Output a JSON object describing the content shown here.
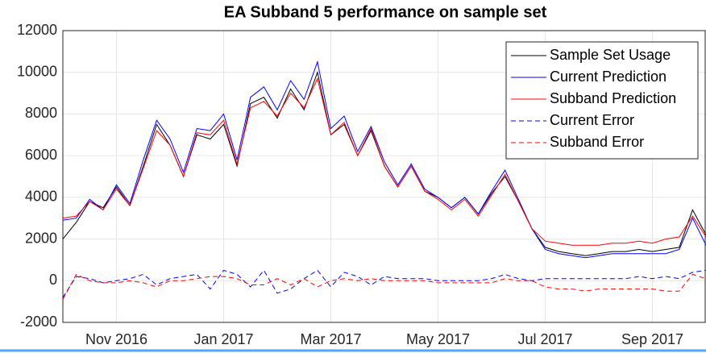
{
  "chart_data": {
    "type": "line",
    "title": "EA Subband 5 performance on sample set",
    "x": [
      0,
      0.25,
      0.5,
      0.75,
      1,
      1.25,
      1.5,
      1.75,
      2,
      2.25,
      2.5,
      2.75,
      3,
      3.25,
      3.5,
      3.75,
      4,
      4.25,
      4.5,
      4.75,
      5,
      5.25,
      5.5,
      5.75,
      6,
      6.25,
      6.5,
      6.75,
      7,
      7.25,
      7.5,
      7.75,
      8,
      8.25,
      8.5,
      8.75,
      9,
      9.25,
      9.5,
      9.75,
      10,
      10.25,
      10.5,
      10.75,
      11,
      11.25,
      11.5,
      11.75,
      12
    ],
    "xlim": [
      0,
      12
    ],
    "xticks": [
      {
        "value": 1,
        "label": "Nov 2016"
      },
      {
        "value": 3,
        "label": "Jan 2017"
      },
      {
        "value": 5,
        "label": "Mar 2017"
      },
      {
        "value": 7,
        "label": "May 2017"
      },
      {
        "value": 9,
        "label": "Jul 2017"
      },
      {
        "value": 11,
        "label": "Sep 2017"
      }
    ],
    "ylim": [
      -2000,
      12000
    ],
    "yticks": [
      -2000,
      0,
      2000,
      4000,
      6000,
      8000,
      10000,
      12000
    ],
    "grid": true,
    "legend": "top-right",
    "series": [
      {
        "name": "Sample Set Usage",
        "color": "#000000",
        "dashed": false,
        "values": [
          2000,
          2800,
          3800,
          3500,
          4500,
          3600,
          5500,
          7500,
          6500,
          5000,
          7000,
          6800,
          7500,
          5500,
          8500,
          8800,
          7800,
          9200,
          8200,
          10000,
          7000,
          7500,
          6000,
          7200,
          5500,
          4500,
          5500,
          4300,
          4000,
          3500,
          4000,
          3200,
          4200,
          5000,
          3800,
          2500,
          1600,
          1400,
          1300,
          1200,
          1300,
          1400,
          1400,
          1500,
          1400,
          1500,
          1600,
          3400,
          2200
        ]
      },
      {
        "name": "Current Prediction",
        "color": "#0000ff",
        "dashed": false,
        "values": [
          2900,
          3000,
          3900,
          3400,
          4600,
          3700,
          5800,
          7700,
          6800,
          5200,
          7300,
          7200,
          8000,
          5800,
          8800,
          9300,
          8200,
          9600,
          8700,
          10500,
          7300,
          7900,
          6200,
          7400,
          5700,
          4600,
          5600,
          4400,
          4000,
          3500,
          4000,
          3200,
          4300,
          5300,
          3900,
          2500,
          1500,
          1300,
          1200,
          1100,
          1200,
          1300,
          1300,
          1300,
          1300,
          1300,
          1500,
          3000,
          1700
        ]
      },
      {
        "name": "Subband Prediction",
        "color": "#ff0000",
        "dashed": false,
        "values": [
          3000,
          3100,
          3800,
          3400,
          4400,
          3600,
          5400,
          7200,
          6500,
          5000,
          7100,
          7000,
          7700,
          5600,
          8300,
          8600,
          7900,
          9000,
          8300,
          9700,
          7000,
          7600,
          6000,
          7300,
          5500,
          4500,
          5500,
          4300,
          3900,
          3400,
          3900,
          3100,
          4100,
          5100,
          3800,
          2500,
          1900,
          1800,
          1700,
          1700,
          1700,
          1800,
          1800,
          1900,
          1800,
          2000,
          2100,
          3100,
          2100
        ]
      },
      {
        "name": "Current Error",
        "color": "#0000ff",
        "dashed": true,
        "values": [
          -800,
          200,
          100,
          -100,
          0,
          100,
          300,
          -200,
          100,
          200,
          300,
          -400,
          500,
          300,
          -300,
          500,
          -600,
          -400,
          100,
          500,
          -300,
          400,
          200,
          -200,
          200,
          100,
          100,
          100,
          0,
          0,
          0,
          0,
          100,
          300,
          100,
          0,
          100,
          100,
          100,
          100,
          100,
          100,
          100,
          200,
          100,
          200,
          100,
          400,
          500
        ]
      },
      {
        "name": "Subband Error",
        "color": "#ff0000",
        "dashed": true,
        "values": [
          -900,
          300,
          0,
          -100,
          -100,
          0,
          -100,
          -300,
          0,
          0,
          100,
          200,
          200,
          100,
          -200,
          -200,
          100,
          -200,
          100,
          -300,
          0,
          100,
          0,
          100,
          0,
          0,
          0,
          0,
          -100,
          -100,
          -100,
          -100,
          -100,
          100,
          0,
          0,
          -300,
          -400,
          -400,
          -500,
          -400,
          -400,
          -400,
          -400,
          -400,
          -500,
          -500,
          300,
          100
        ]
      }
    ]
  }
}
